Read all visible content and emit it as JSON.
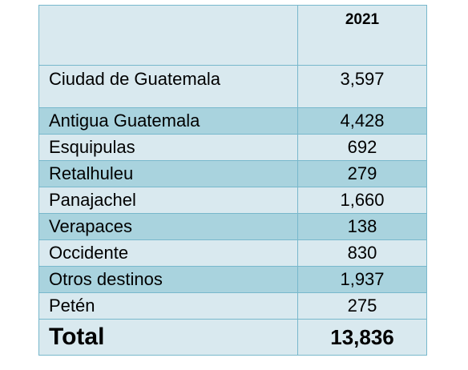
{
  "table": {
    "header": {
      "label": "",
      "year": "2021"
    },
    "rows": [
      {
        "destination": "Ciudad de Guatemala",
        "value": "3,597"
      },
      {
        "destination": "Antigua Guatemala",
        "value": "4,428"
      },
      {
        "destination": "Esquipulas",
        "value": "692"
      },
      {
        "destination": "Retalhuleu",
        "value": "279"
      },
      {
        "destination": "Panajachel",
        "value": "1,660"
      },
      {
        "destination": "Verapaces",
        "value": "138"
      },
      {
        "destination": "Occidente",
        "value": "830"
      },
      {
        "destination": "Otros destinos",
        "value": "1,937"
      },
      {
        "destination": "Petén",
        "value": "275"
      }
    ],
    "total": {
      "label": "Total",
      "value": "13,836"
    }
  },
  "colors": {
    "row_light": "#d9e9ef",
    "row_dark": "#a9d3de",
    "border": "#78b8cc"
  }
}
